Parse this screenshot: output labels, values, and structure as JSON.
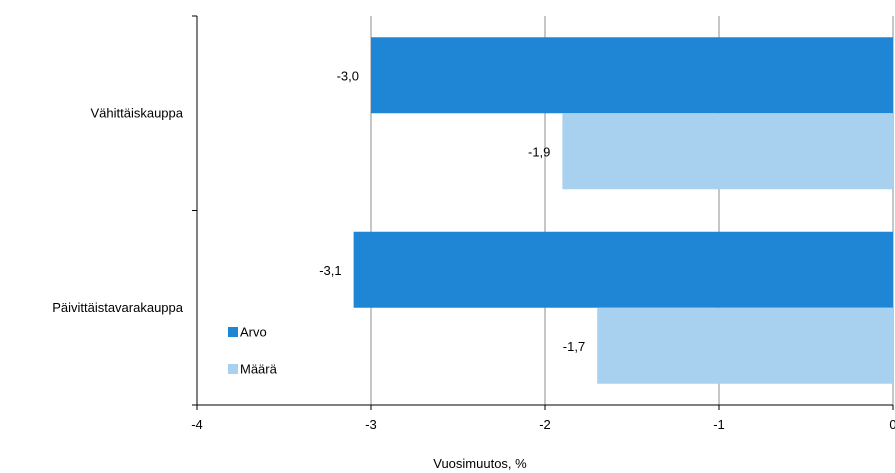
{
  "chart_data": {
    "type": "bar",
    "orientation": "horizontal",
    "categories": [
      "Vähittäiskauppa",
      "Päivittäistavarakauppa"
    ],
    "series": [
      {
        "name": "Arvo",
        "values": [
          -3.0,
          -3.1
        ],
        "labels": [
          "-3,0",
          "-3,1"
        ],
        "color": "#1f86d6"
      },
      {
        "name": "Määrä",
        "values": [
          -1.9,
          -1.7
        ],
        "labels": [
          "-1,9",
          "-1,7"
        ],
        "color": "#a8d0ef"
      }
    ],
    "xlabel": "Vuosimuutos, %",
    "xlim": [
      -4,
      0
    ],
    "xticks": [
      -4,
      -3,
      -2,
      -1,
      0
    ],
    "xtick_labels": [
      "-4",
      "-3",
      "-2",
      "-1",
      "0"
    ],
    "grid": "vertical",
    "legend_position": "bottom-left"
  }
}
